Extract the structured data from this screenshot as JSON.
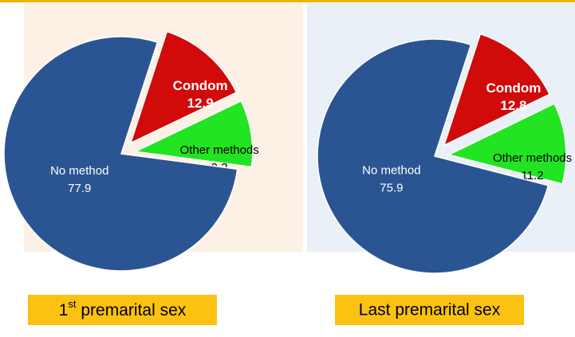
{
  "chart_data": [
    {
      "type": "pie",
      "title": [
        "1",
        "st",
        " premarital sex"
      ],
      "categories": [
        "Condom",
        "Other methods",
        "No method"
      ],
      "values": [
        12.9,
        9.2,
        77.9
      ],
      "colors": [
        "#d10a0a",
        "#22e422",
        "#2b5592"
      ]
    },
    {
      "type": "pie",
      "title": "Last premarital sex",
      "categories": [
        "Condom",
        "Other methods",
        "No method"
      ],
      "values": [
        12.8,
        11.2,
        75.9
      ],
      "colors": [
        "#d10a0a",
        "#22e422",
        "#2b5592"
      ]
    }
  ]
}
